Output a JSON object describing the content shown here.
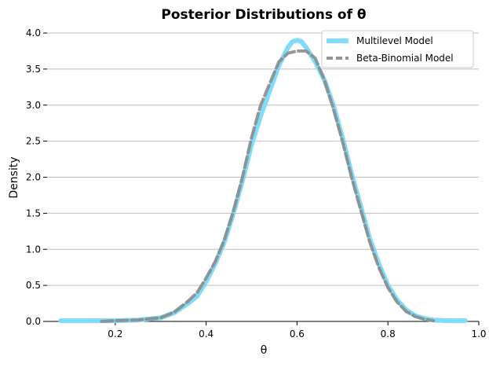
{
  "chart_data": {
    "type": "line",
    "title": "Posterior Distributions of θ",
    "xlabel": "θ",
    "ylabel": "Density",
    "xlim": [
      0.05,
      1.0
    ],
    "ylim": [
      0.0,
      4.0
    ],
    "xticks": [
      0.2,
      0.4,
      0.6,
      0.8,
      1.0
    ],
    "xtick_labels": [
      "0.2",
      "0.4",
      "0.6",
      "0.8",
      "1.0"
    ],
    "yticks": [
      0.0,
      0.5,
      1.0,
      1.5,
      2.0,
      2.5,
      3.0,
      3.5,
      4.0
    ],
    "ytick_labels": [
      "0.0",
      "0.5",
      "1.0",
      "1.5",
      "2.0",
      "2.5",
      "3.0",
      "3.5",
      "4.0"
    ],
    "grid": "horizontal",
    "legend_position": "top-right",
    "series": [
      {
        "name": "Multilevel Model",
        "color": "#7fdcfb",
        "style": "solid",
        "x": [
          0.08,
          0.15,
          0.2,
          0.25,
          0.3,
          0.33,
          0.36,
          0.38,
          0.4,
          0.42,
          0.44,
          0.46,
          0.48,
          0.5,
          0.52,
          0.54,
          0.56,
          0.58,
          0.59,
          0.6,
          0.61,
          0.62,
          0.63,
          0.64,
          0.66,
          0.68,
          0.7,
          0.72,
          0.74,
          0.76,
          0.78,
          0.8,
          0.82,
          0.84,
          0.86,
          0.88,
          0.9,
          0.93,
          0.97
        ],
        "y": [
          0.01,
          0.01,
          0.01,
          0.02,
          0.05,
          0.12,
          0.25,
          0.35,
          0.55,
          0.8,
          1.1,
          1.5,
          1.95,
          2.45,
          2.85,
          3.2,
          3.55,
          3.8,
          3.88,
          3.9,
          3.88,
          3.8,
          3.7,
          3.6,
          3.35,
          3.0,
          2.55,
          2.05,
          1.6,
          1.15,
          0.8,
          0.5,
          0.3,
          0.16,
          0.08,
          0.04,
          0.02,
          0.01,
          0.01
        ]
      },
      {
        "name": "Beta-Binomial Model",
        "color": "#8c8c8c",
        "style": "dashed",
        "x": [
          0.17,
          0.2,
          0.25,
          0.3,
          0.33,
          0.36,
          0.38,
          0.4,
          0.42,
          0.44,
          0.46,
          0.48,
          0.5,
          0.52,
          0.54,
          0.56,
          0.58,
          0.6,
          0.62,
          0.64,
          0.66,
          0.68,
          0.7,
          0.72,
          0.74,
          0.76,
          0.78,
          0.8,
          0.82,
          0.84,
          0.86,
          0.88,
          0.9
        ],
        "y": [
          0.0,
          0.01,
          0.02,
          0.05,
          0.13,
          0.28,
          0.4,
          0.6,
          0.83,
          1.13,
          1.53,
          2.0,
          2.55,
          3.0,
          3.3,
          3.6,
          3.72,
          3.75,
          3.75,
          3.65,
          3.35,
          2.95,
          2.5,
          2.0,
          1.55,
          1.1,
          0.75,
          0.47,
          0.27,
          0.14,
          0.07,
          0.03,
          0.01
        ]
      }
    ]
  }
}
